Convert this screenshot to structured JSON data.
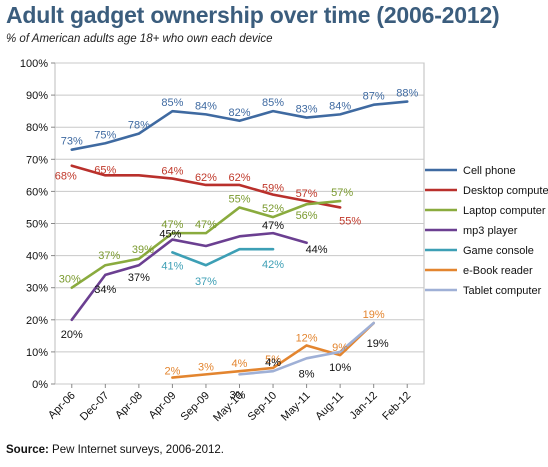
{
  "title": "Adult gadget ownership over time (2006-2012)",
  "subtitle": "% of American adults age 18+ who own each device",
  "source": {
    "label": "Source:",
    "text": "Pew Internet surveys, 2006-2012."
  },
  "chart_data": {
    "type": "line",
    "categories": [
      "Apr-06",
      "Dec-07",
      "Apr-08",
      "Apr-09",
      "Sep-09",
      "May-10",
      "Sep-10",
      "May-11",
      "Aug-11",
      "Jan-12",
      "Feb-12"
    ],
    "ylim": [
      0,
      100
    ],
    "yticks": [
      "0%",
      "10%",
      "20%",
      "30%",
      "40%",
      "50%",
      "60%",
      "70%",
      "80%",
      "90%",
      "100%"
    ],
    "grid": true,
    "legend_position": "right",
    "series": [
      {
        "name": "Cell phone",
        "color": "#3f6aa1",
        "values": [
          73,
          75,
          78,
          85,
          84,
          82,
          85,
          83,
          84,
          87,
          88
        ],
        "labels": [
          "73%",
          "75%",
          "78%",
          "85%",
          "84%",
          "82%",
          "85%",
          "83%",
          "84%",
          "87%",
          "88%"
        ]
      },
      {
        "name": "Desktop compute",
        "color": "#b9302c",
        "values": [
          68,
          65,
          65,
          64,
          62,
          62,
          59,
          57,
          55,
          null,
          null
        ],
        "labels": [
          "68%",
          "65%",
          "",
          "64%",
          "62%",
          "62%",
          "59%",
          "57%",
          "55%",
          "",
          ""
        ]
      },
      {
        "name": "Laptop computer",
        "color": "#8aab3e",
        "values": [
          30,
          37,
          39,
          47,
          47,
          55,
          52,
          56,
          57,
          null,
          null
        ],
        "labels": [
          "30%",
          "37%",
          "39%",
          "47%",
          "47%",
          "55%",
          "52%",
          "56%",
          "57%",
          "",
          ""
        ]
      },
      {
        "name": "mp3 player",
        "color": "#6b3f91",
        "values": [
          20,
          34,
          37,
          45,
          43,
          46,
          47,
          44,
          null,
          null,
          null
        ],
        "labels": [
          "20%",
          "34%",
          "37%",
          "45%",
          "",
          "",
          "47%",
          "44%",
          "",
          "",
          ""
        ]
      },
      {
        "name": "Game console",
        "color": "#3d9fb5",
        "values": [
          null,
          null,
          null,
          41,
          37,
          42,
          42,
          null,
          null,
          null,
          null
        ],
        "labels": [
          "",
          "",
          "",
          "41%",
          "37%",
          "",
          "42%",
          "",
          "",
          "",
          ""
        ]
      },
      {
        "name": "e-Book reader",
        "color": "#e3852f",
        "values": [
          null,
          null,
          null,
          2,
          3,
          4,
          5,
          12,
          9,
          19,
          null
        ],
        "labels": [
          "",
          "",
          "",
          "2%",
          "3%",
          "4%",
          "5%",
          "12%",
          "9%",
          "19%",
          ""
        ]
      },
      {
        "name": "Tablet computer",
        "color": "#9fb0d6",
        "values": [
          null,
          null,
          null,
          null,
          null,
          3,
          4,
          8,
          10,
          19,
          null
        ],
        "labels": [
          "",
          "",
          "",
          "",
          "",
          "3%",
          "4%",
          "8%",
          "10%",
          "19%",
          ""
        ]
      }
    ]
  }
}
